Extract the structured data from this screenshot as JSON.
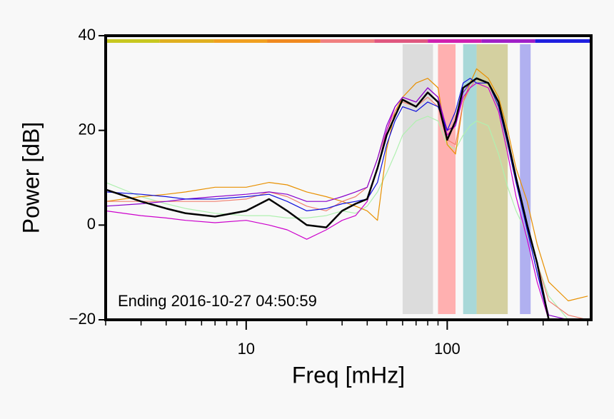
{
  "chart_data": {
    "type": "line",
    "x_label": "Freq [mHz]",
    "y_label": "Power [dB]",
    "annotation": "Ending 2016-10-27 04:50:59",
    "xscale": "log",
    "xlim": [
      2,
      520
    ],
    "ylim": [
      -20,
      40
    ],
    "xticks": [
      10,
      100
    ],
    "xminorticks": [
      2,
      3,
      4,
      5,
      6,
      7,
      8,
      9,
      20,
      30,
      40,
      50,
      60,
      70,
      80,
      90,
      200,
      300,
      400,
      500
    ],
    "yticks": [
      {
        "value": -20,
        "label": "−20"
      },
      0,
      20,
      40
    ],
    "top_bar_edges": [
      2,
      3.7,
      6.9,
      12.7,
      23.4,
      43.4,
      80,
      148,
      274,
      520
    ],
    "top_bar_colors": [
      "#c8c820",
      "#e0b020",
      "#f0a020",
      "#f08a20",
      "#f08080",
      "#e05880",
      "#d020b0",
      "#a020c8",
      "#2020e0"
    ],
    "bands": [
      {
        "from": 60,
        "to": 85,
        "color": "#dcdcdc"
      },
      {
        "from": 90,
        "to": 110,
        "color": "#ffb0b0"
      },
      {
        "from": 120,
        "to": 140,
        "color": "#a8d8d8"
      },
      {
        "from": 140,
        "to": 200,
        "color": "#d4d0a0"
      },
      {
        "from": 230,
        "to": 260,
        "color": "#b0b0f0"
      }
    ],
    "x": [
      2,
      3,
      4,
      5,
      7,
      10,
      13,
      16,
      20,
      25,
      30,
      35,
      40,
      45,
      50,
      55,
      60,
      70,
      80,
      90,
      100,
      110,
      120,
      130,
      140,
      160,
      180,
      200,
      220,
      250,
      280,
      320,
      400,
      500
    ],
    "series": [
      {
        "color": "#b0f0b0",
        "values": [
          9,
          6,
          4.5,
          3.5,
          2.5,
          2,
          2,
          1.5,
          1.5,
          2,
          3,
          2.5,
          4,
          7,
          11,
          15,
          19,
          22,
          23,
          22,
          17,
          16,
          19,
          21,
          22,
          21,
          15,
          8,
          3,
          -2,
          -8,
          -15,
          -20,
          -20
        ]
      },
      {
        "color": "#e89000",
        "values": [
          5,
          6,
          6.5,
          7,
          8,
          8,
          9,
          8.5,
          7,
          6,
          5,
          4,
          3,
          1,
          16,
          24,
          27,
          30,
          31,
          29,
          17,
          15,
          26,
          30,
          33,
          31,
          27,
          20,
          12,
          5,
          -4,
          -12,
          -16,
          -15
        ]
      },
      {
        "color": "#f08070",
        "values": [
          5,
          5,
          5,
          5,
          5,
          5.5,
          7,
          6,
          4,
          3,
          5,
          6,
          8,
          14,
          20,
          24,
          26,
          25,
          27,
          25,
          18,
          17,
          26,
          29,
          31,
          30,
          26,
          17,
          9,
          0,
          -8,
          -16,
          -19,
          -20
        ]
      },
      {
        "color": "#cc00cc",
        "values": [
          3,
          2,
          1.5,
          1,
          0.5,
          1,
          0,
          -1,
          -3,
          -1,
          1,
          2,
          5,
          12,
          20,
          25,
          27,
          26,
          29,
          27,
          19,
          21,
          27,
          29,
          30,
          29,
          24,
          15,
          6,
          -3,
          -12,
          -20,
          -20,
          -20
        ]
      },
      {
        "color": "#8800cc",
        "values": [
          4,
          4.5,
          5,
          5.5,
          6,
          6.5,
          7,
          6.5,
          5,
          5,
          6,
          7,
          8,
          14,
          21,
          25,
          27,
          26,
          29,
          27,
          20,
          21,
          28,
          30,
          31,
          30,
          26,
          17,
          9,
          -1,
          -10,
          -19,
          -20,
          -20
        ]
      },
      {
        "color": "#1010dd",
        "values": [
          7,
          6.5,
          6,
          5.5,
          5.5,
          6,
          6.5,
          5,
          3,
          3.5,
          4.5,
          5,
          5.5,
          9,
          17,
          22,
          25,
          24,
          26,
          25,
          20,
          24,
          30,
          31,
          30,
          30,
          25,
          17,
          9,
          -1,
          -10,
          -20,
          -20,
          -20
        ]
      },
      {
        "color": "#000000",
        "width": 2.5,
        "values": [
          7.5,
          5,
          3.5,
          2.5,
          1.8,
          3,
          5.5,
          3,
          0,
          -0.5,
          3,
          4.5,
          5.5,
          12,
          19,
          23,
          26.5,
          25,
          28,
          26,
          18,
          22,
          29,
          30,
          31,
          30,
          26,
          18,
          10,
          0,
          -8,
          -20,
          -20,
          -20
        ]
      }
    ]
  }
}
